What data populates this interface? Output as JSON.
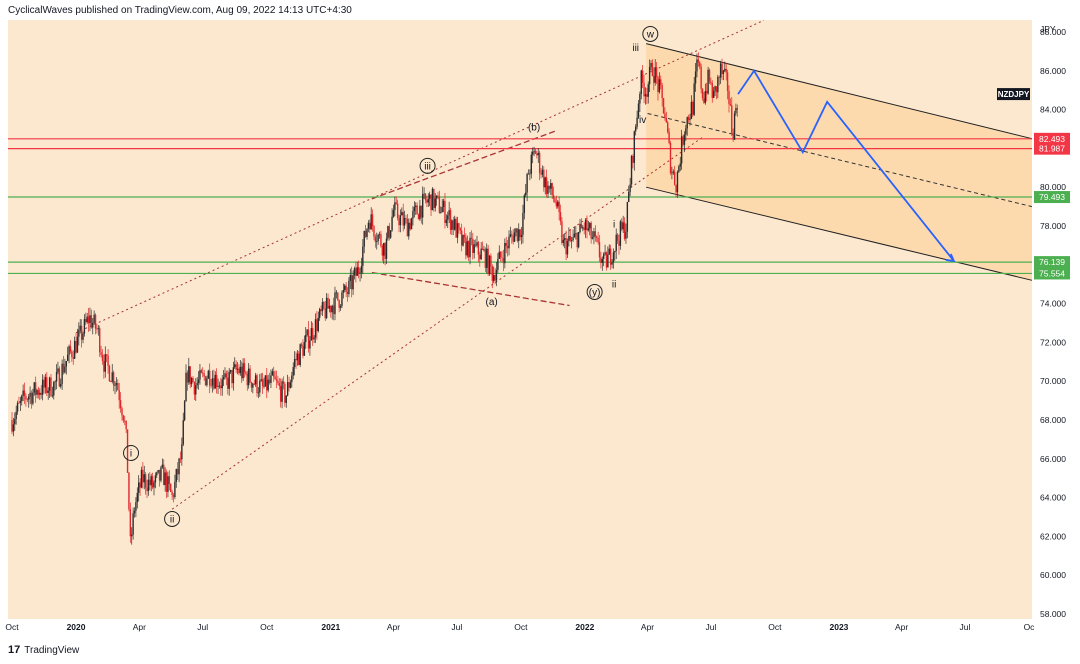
{
  "header": {
    "publisher": "CyclicalWaves published on TradingView.com, Aug 09, 2022 14:13 UTC+4:30"
  },
  "footer": {
    "brand": "TradingView",
    "logo_glyph": "17"
  },
  "chart_data": {
    "type": "candlestick",
    "symbol": "NZDJPY",
    "currency": "JPY",
    "ylim": [
      58,
      88
    ],
    "x_ticks": [
      "Oct",
      "2020",
      "Apr",
      "Jul",
      "Oct",
      "2021",
      "Apr",
      "Jul",
      "Oct",
      "2022",
      "Apr",
      "Jul",
      "Oct",
      "2023",
      "Apr",
      "Jul",
      "Oc"
    ],
    "y_ticks": [
      "58.000",
      "60.000",
      "62.000",
      "64.000",
      "66.000",
      "68.000",
      "70.000",
      "72.000",
      "74.000",
      "76.000",
      "78.000",
      "80.000",
      "82.000",
      "84.000",
      "86.000",
      "88.000"
    ],
    "price_lines": [
      {
        "value": 82.493,
        "label": "82.493",
        "color": "#f23645"
      },
      {
        "value": 81.987,
        "label": "81.987",
        "color": "#f23645"
      },
      {
        "value": 79.493,
        "label": "79.493",
        "color": "#4caf50"
      },
      {
        "value": 76.139,
        "label": "76.139",
        "color": "#4caf50"
      },
      {
        "value": 75.554,
        "label": "75.554",
        "color": "#4caf50"
      }
    ],
    "symbol_label_value": 84.8,
    "wave_labels": [
      {
        "text": "i",
        "date": "2020-03-20",
        "price": 66.3,
        "circled": true
      },
      {
        "text": "ii",
        "date": "2020-05-18",
        "price": 62.9,
        "circled": true
      },
      {
        "text": "iii",
        "date": "2021-05-20",
        "price": 81.1,
        "circled": true
      },
      {
        "text": "(a)",
        "date": "2021-08-20",
        "price": 74.1,
        "circled": false
      },
      {
        "text": "(b)",
        "date": "2021-10-20",
        "price": 83.1,
        "circled": false
      },
      {
        "text": "(y)",
        "date": "2022-01-15",
        "price": 74.6,
        "circled": true
      },
      {
        "text": "i",
        "date": "2022-02-12",
        "price": 78.1,
        "circled": false
      },
      {
        "text": "ii",
        "date": "2022-02-12",
        "price": 75.0,
        "circled": false
      },
      {
        "text": "iii",
        "date": "2022-03-15",
        "price": 87.2,
        "circled": false
      },
      {
        "text": "iv",
        "date": "2022-03-25",
        "price": 83.5,
        "circled": false
      },
      {
        "text": "w",
        "date": "2022-04-05",
        "price": 87.9,
        "circled": true
      }
    ],
    "candle_path": [
      [
        "2019-10-01",
        68.0
      ],
      [
        "2019-10-20",
        69.2
      ],
      [
        "2019-11-10",
        69.6
      ],
      [
        "2019-12-01",
        69.8
      ],
      [
        "2019-12-20",
        71.2
      ],
      [
        "2020-01-10",
        72.5
      ],
      [
        "2020-01-20",
        73.3
      ],
      [
        "2020-02-01",
        72.6
      ],
      [
        "2020-02-10",
        71.0
      ],
      [
        "2020-02-28",
        70.0
      ],
      [
        "2020-03-10",
        68.2
      ],
      [
        "2020-03-14",
        66.5
      ],
      [
        "2020-03-19",
        61.5
      ],
      [
        "2020-03-25",
        63.5
      ],
      [
        "2020-04-05",
        65.0
      ],
      [
        "2020-04-20",
        64.6
      ],
      [
        "2020-05-05",
        65.2
      ],
      [
        "2020-05-18",
        64.0
      ],
      [
        "2020-06-01",
        66.3
      ],
      [
        "2020-06-08",
        70.5
      ],
      [
        "2020-06-20",
        69.8
      ],
      [
        "2020-07-10",
        70.4
      ],
      [
        "2020-08-01",
        69.8
      ],
      [
        "2020-08-20",
        70.6
      ],
      [
        "2020-09-05",
        70.2
      ],
      [
        "2020-09-25",
        69.6
      ],
      [
        "2020-10-10",
        70.0
      ],
      [
        "2020-10-28",
        69.2
      ],
      [
        "2020-11-10",
        71.0
      ],
      [
        "2020-12-01",
        72.3
      ],
      [
        "2020-12-20",
        73.5
      ],
      [
        "2021-01-10",
        74.2
      ],
      [
        "2021-01-25",
        74.6
      ],
      [
        "2021-02-10",
        75.8
      ],
      [
        "2021-02-25",
        78.5
      ],
      [
        "2021-03-05",
        77.8
      ],
      [
        "2021-03-20",
        76.8
      ],
      [
        "2021-04-01",
        78.8
      ],
      [
        "2021-04-20",
        78.0
      ],
      [
        "2021-05-10",
        79.0
      ],
      [
        "2021-05-25",
        79.4
      ],
      [
        "2021-06-10",
        78.9
      ],
      [
        "2021-06-25",
        78.2
      ],
      [
        "2021-07-10",
        77.0
      ],
      [
        "2021-07-25",
        76.8
      ],
      [
        "2021-08-10",
        76.5
      ],
      [
        "2021-08-22",
        75.5
      ],
      [
        "2021-09-05",
        76.6
      ],
      [
        "2021-09-20",
        77.6
      ],
      [
        "2021-10-01",
        77.8
      ],
      [
        "2021-10-12",
        80.8
      ],
      [
        "2021-10-22",
        81.9
      ],
      [
        "2021-11-05",
        80.2
      ],
      [
        "2021-11-20",
        79.3
      ],
      [
        "2021-12-01",
        77.0
      ],
      [
        "2021-12-15",
        77.2
      ],
      [
        "2022-01-01",
        78.0
      ],
      [
        "2022-01-15",
        77.2
      ],
      [
        "2022-01-28",
        76.0
      ],
      [
        "2022-02-05",
        76.4
      ],
      [
        "2022-02-20",
        77.6
      ],
      [
        "2022-03-01",
        78.0
      ],
      [
        "2022-03-10",
        81.5
      ],
      [
        "2022-03-22",
        85.5
      ],
      [
        "2022-03-30",
        85.0
      ],
      [
        "2022-04-08",
        86.2
      ],
      [
        "2022-04-15",
        85.4
      ],
      [
        "2022-04-25",
        84.0
      ],
      [
        "2022-05-05",
        81.0
      ],
      [
        "2022-05-12",
        80.2
      ],
      [
        "2022-05-25",
        83.3
      ],
      [
        "2022-06-05",
        84.2
      ],
      [
        "2022-06-12",
        86.5
      ],
      [
        "2022-06-20",
        84.6
      ],
      [
        "2022-06-28",
        85.6
      ],
      [
        "2022-07-05",
        84.6
      ],
      [
        "2022-07-15",
        86.0
      ],
      [
        "2022-07-25",
        85.2
      ],
      [
        "2022-08-01",
        82.8
      ],
      [
        "2022-08-09",
        84.8
      ]
    ],
    "projection": [
      [
        "2022-08-09",
        84.8
      ],
      [
        "2022-09-01",
        86.0
      ],
      [
        "2022-11-10",
        81.8
      ],
      [
        "2022-12-15",
        84.4
      ],
      [
        "2023-06-15",
        76.2
      ]
    ]
  }
}
